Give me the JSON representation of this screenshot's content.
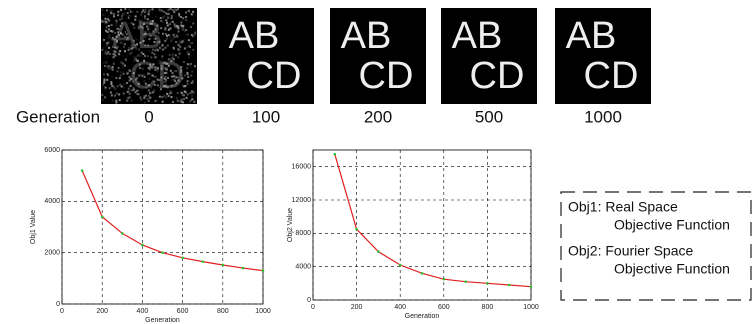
{
  "image_row": {
    "label": "Generation",
    "generations": [
      0,
      100,
      200,
      500,
      1000
    ],
    "image_text": [
      "AB",
      "CD"
    ]
  },
  "legend_box": {
    "lines": [
      "Obj1: Real Space",
      "Objective Function",
      "Obj2: Fourier Space",
      "Objective Function"
    ]
  },
  "chart_data": [
    {
      "type": "line",
      "ylabel": "Obj1 Value",
      "xlabel": "Generation",
      "x": [
        100,
        200,
        300,
        400,
        500,
        600,
        700,
        800,
        900,
        1000
      ],
      "values": [
        5200,
        3400,
        2750,
        2300,
        2000,
        1800,
        1650,
        1520,
        1400,
        1300
      ],
      "color": "#e02020",
      "marker_color": "#30c030",
      "xlim": [
        0,
        1000
      ],
      "xticks": [
        0,
        200,
        400,
        600,
        800,
        1000
      ],
      "ylim": [
        0,
        6000
      ],
      "yticks": [
        0,
        2000,
        4000,
        6000
      ],
      "grid": true
    },
    {
      "type": "line",
      "ylabel": "Obj2 Value",
      "xlabel": "Generation",
      "x": [
        100,
        200,
        300,
        400,
        500,
        600,
        700,
        800,
        900,
        1000
      ],
      "values": [
        17500,
        8500,
        5800,
        4200,
        3200,
        2500,
        2200,
        2000,
        1800,
        1600
      ],
      "color": "#e02020",
      "marker_color": "#30c030",
      "xlim": [
        0,
        1000
      ],
      "xticks": [
        0,
        200,
        400,
        600,
        800,
        1000
      ],
      "ylim": [
        0,
        18000
      ],
      "yticks": [
        0,
        4000,
        8000,
        12000,
        16000
      ],
      "grid": true
    }
  ]
}
